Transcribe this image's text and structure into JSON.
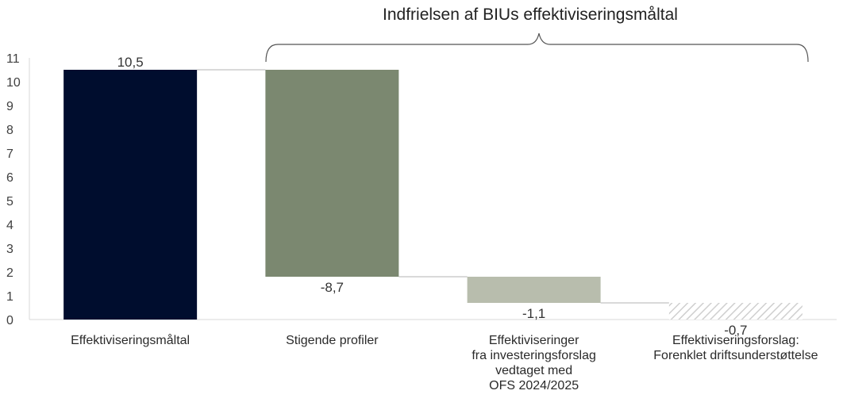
{
  "chart_data": {
    "type": "bar",
    "subtype": "waterfall",
    "categories": [
      "Effektiviseringsmåltal",
      "Stigende profiler",
      "Effektiviseringer\nfra investeringsforslag\nvedtaget med\nOFS 2024/2025",
      "Effektiviseringsforslag:\nForenklet driftsunderstøttelse"
    ],
    "values": [
      10.5,
      -8.7,
      -1.1,
      -0.7
    ],
    "value_labels": [
      "10,5",
      "-8,7",
      "-1,1",
      "-0,7"
    ],
    "y_ticks": [
      "0",
      "1",
      "2",
      "3",
      "4",
      "5",
      "6",
      "7",
      "8",
      "9",
      "10",
      "11"
    ],
    "ylim": [
      0,
      11
    ],
    "bracket_annotation": "Indfrielsen af BIUs effektiviseringsmåltal",
    "colors": [
      "#000d2e",
      "#7b8870",
      "#b8bdad",
      "#d9d9d9"
    ],
    "title": "",
    "xlabel": "",
    "ylabel": "",
    "grid": false,
    "legend": "none"
  }
}
